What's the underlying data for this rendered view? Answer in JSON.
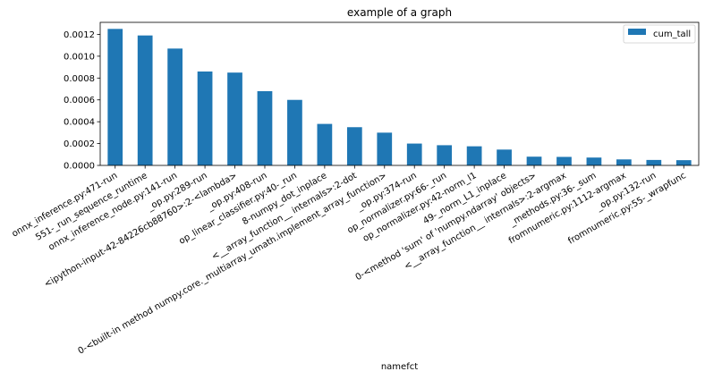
{
  "chart_data": {
    "type": "bar",
    "title": "example of a graph",
    "xlabel": "namefct",
    "ylabel": "",
    "ylim": [
      0,
      0.00131
    ],
    "yticks": [
      0.0,
      0.0002,
      0.0004,
      0.0006,
      0.0008,
      0.001,
      0.0012
    ],
    "ytick_labels": [
      "0.0000",
      "0.0002",
      "0.0004",
      "0.0006",
      "0.0008",
      "0.0010",
      "0.0012"
    ],
    "grid": false,
    "legend_position": "top-right",
    "categories": [
      "onnx_inference.py:471-run",
      "551-_run_sequence_runtime",
      "onnx_inference_node.py:141-run",
      "_op.py:289-run",
      "<ipython-input-42-84226cb88760>:2-<lambda>",
      "_op.py:408-run",
      "op_linear_classifier.py:40-_run",
      "8-numpy_dot_inplace",
      "<__array_function__ internals>:2-dot",
      "0-<built-in method numpy.core._multiarray_umath.implement_array_function>",
      "_op.py:374-run",
      "op_normalizer.py:66-_run",
      "op_normalizer.py:42-norm_l1",
      "49-_norm_L1_inplace",
      "0-<method 'sum' of 'numpy.ndarray' objects>",
      "<__array_function__ internals>:2-argmax",
      "_methods.py:36-_sum",
      "fromnumeric.py:1112-argmax",
      "_op.py:132-run",
      "fromnumeric.py:55-_wrapfunc"
    ],
    "series": [
      {
        "name": "cum_tall",
        "color": "#1f77b4",
        "values": [
          0.00125,
          0.00119,
          0.00107,
          0.00086,
          0.00085,
          0.00068,
          0.0006,
          0.00038,
          0.00035,
          0.0003,
          0.0002,
          0.000185,
          0.000175,
          0.000145,
          8e-05,
          7.8e-05,
          7.2e-05,
          5.5e-05,
          5e-05,
          4.8e-05
        ]
      }
    ]
  }
}
